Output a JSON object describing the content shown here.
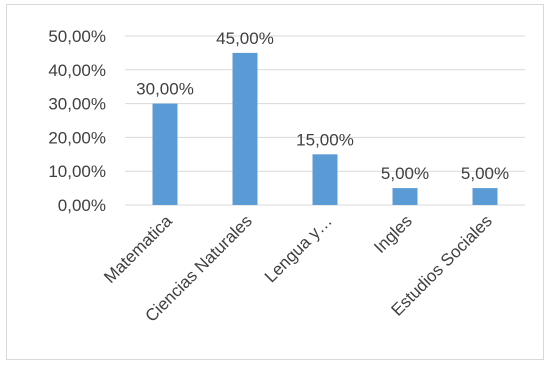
{
  "chart_data": {
    "type": "bar",
    "categories": [
      "Matematica",
      "Ciencias Naturales",
      "Lengua y…",
      "Ingles",
      "Estudios Sociales"
    ],
    "values": [
      30,
      45,
      15,
      5,
      5
    ],
    "value_labels": [
      "30,00%",
      "45,00%",
      "15,00%",
      "5,00%",
      "5,00%"
    ],
    "y_ticks": [
      "0,00%",
      "10,00%",
      "20,00%",
      "30,00%",
      "40,00%",
      "50,00%"
    ],
    "ylim": [
      0,
      50
    ],
    "grid": true,
    "legend": "none",
    "colors": {
      "bar": "#5b9bd5",
      "grid": "#d9d9d9",
      "text": "#404040"
    }
  }
}
